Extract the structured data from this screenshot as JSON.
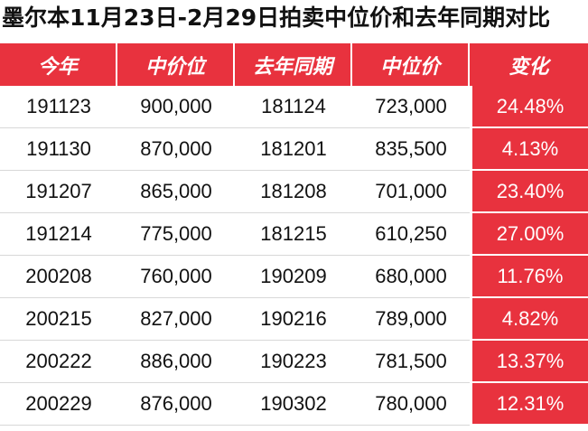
{
  "title": "墨尔本11月23日-2月29日拍卖中位价和去年同期对比",
  "headers": [
    "今年",
    "中价位",
    "去年同期",
    "中位价",
    "变化"
  ],
  "rows": [
    [
      "191123",
      "900,000",
      "181124",
      "723,000",
      "24.48%"
    ],
    [
      "191130",
      "870,000",
      "181201",
      "835,500",
      "4.13%"
    ],
    [
      "191207",
      "865,000",
      "181208",
      "701,000",
      "23.40%"
    ],
    [
      "191214",
      "775,000",
      "181215",
      "610,250",
      "27.00%"
    ],
    [
      "200208",
      "760,000",
      "190209",
      "680,000",
      "11.76%"
    ],
    [
      "200215",
      "827,000",
      "190216",
      "789,000",
      "4.82%"
    ],
    [
      "200222",
      "886,000",
      "190223",
      "781,500",
      "13.37%"
    ],
    [
      "200229",
      "876,000",
      "190302",
      "780,000",
      "12.31%"
    ]
  ],
  "colors": {
    "header_bg": "#e8323e",
    "change_bg": "#e8323e",
    "header_text": "#ffffff"
  }
}
